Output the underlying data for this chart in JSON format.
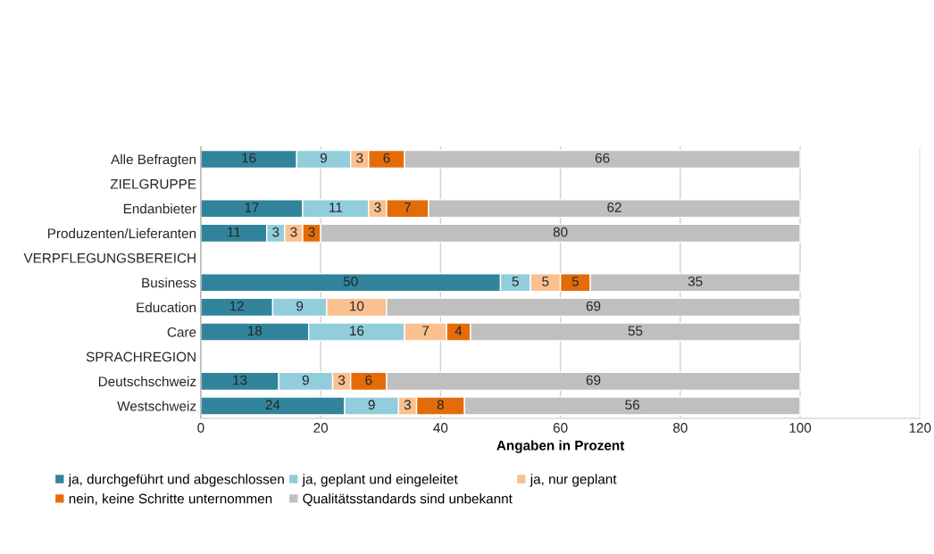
{
  "chart_data": {
    "type": "bar",
    "orientation": "horizontal",
    "stacked": true,
    "data_labels": true,
    "xlabel": "Angaben in Prozent",
    "categories": [
      "Alle Befragten",
      "ZIELGRUPPE",
      "Endanbieter",
      "Produzenten/Lieferanten",
      "VERPFLEGUNGSBEREICH",
      "Business",
      "Education",
      "Care",
      "SPRACHREGION",
      "Deutschschweiz",
      "Westschweiz"
    ],
    "series": [
      {
        "name": "ja, durchgeführt und abgeschlossen",
        "color": "#31849b",
        "values": [
          16,
          null,
          17,
          11,
          null,
          50,
          12,
          18,
          null,
          13,
          24
        ]
      },
      {
        "name": "ja, geplant und eingeleitet",
        "color": "#92cddc",
        "values": [
          9,
          null,
          11,
          3,
          null,
          5,
          9,
          16,
          null,
          9,
          9
        ]
      },
      {
        "name": "ja, nur geplant",
        "color": "#fac090",
        "values": [
          3,
          null,
          3,
          3,
          null,
          5,
          10,
          7,
          null,
          3,
          3
        ]
      },
      {
        "name": "nein, keine Schritte unternommen",
        "color": "#e36c09",
        "values": [
          6,
          null,
          7,
          3,
          null,
          5,
          null,
          4,
          null,
          6,
          8
        ]
      },
      {
        "name": "Qualitätsstandards sind unbekannt",
        "color": "#bfbfbf",
        "values": [
          66,
          null,
          62,
          80,
          null,
          35,
          69,
          55,
          null,
          69,
          56
        ]
      }
    ],
    "xlim": [
      0,
      120
    ],
    "xticks": [
      0,
      20,
      40,
      60,
      80,
      100,
      120
    ],
    "grid": "x",
    "legend": "bottom"
  }
}
